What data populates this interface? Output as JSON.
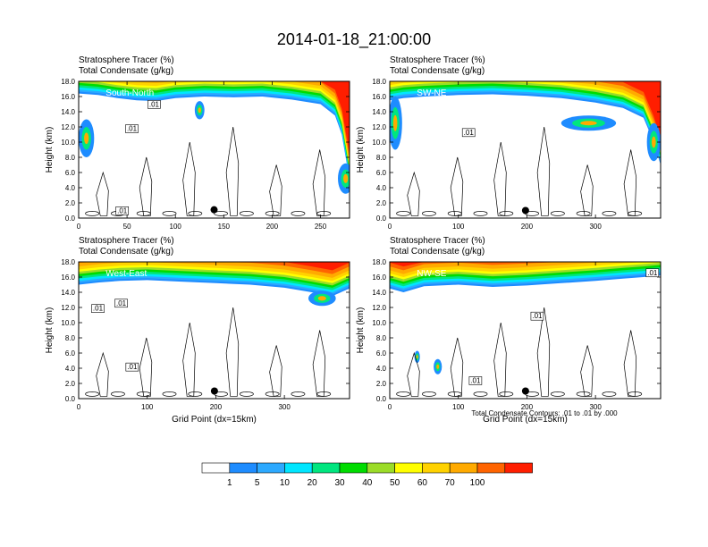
{
  "title": "2014-01-18_21:00:00",
  "colors": {
    "levels": [
      "#ffffff",
      "#1e8cff",
      "#2ca9ff",
      "#00e6ff",
      "#00e67f",
      "#00dc00",
      "#9bdc28",
      "#ffff00",
      "#ffd200",
      "#ffaa00",
      "#ff6400",
      "#ff1e00"
    ],
    "contour": "#000000",
    "marker": "#000000"
  },
  "legend": {
    "labels": [
      "1",
      "5",
      "10",
      "20",
      "30",
      "40",
      "50",
      "60",
      "70",
      "100"
    ]
  },
  "footnote": "Total Condensate Contours: .01 to .01 by .000",
  "chart_data": [
    {
      "type": "heatmap",
      "subtitle_1": "Stratosphere Tracer   (%)",
      "subtitle_2": "Total Condensate   (g/kg)",
      "panel_label": "South-North",
      "ylabel": "Height (km)",
      "xlabel": "",
      "xlim": [
        0,
        280
      ],
      "ylim": [
        0,
        18
      ],
      "x_ticks": [
        "0",
        "50",
        "100",
        "150",
        "200",
        "250"
      ],
      "x_tick_values": [
        0,
        50,
        100,
        150,
        200,
        250
      ],
      "y_ticks": [
        "0.0",
        "2.0",
        "4.0",
        "6.0",
        "8.0",
        "10.0",
        "12.0",
        "14.0",
        "16.0",
        "18.0"
      ],
      "contour_labels": [
        {
          "text": ".01",
          "x": 55,
          "y": 11.7
        },
        {
          "text": ".01",
          "x": 78,
          "y": 14.9
        },
        {
          "text": ".01",
          "x": 45,
          "y": 0.9
        }
      ],
      "marker": {
        "x": 140,
        "y": 1.1
      },
      "tropopause": [
        [
          0,
          16.4
        ],
        [
          20,
          16.2
        ],
        [
          40,
          15.8
        ],
        [
          60,
          15.5
        ],
        [
          80,
          15.4
        ],
        [
          100,
          15.8
        ],
        [
          130,
          16.0
        ],
        [
          160,
          15.9
        ],
        [
          190,
          16.0
        ],
        [
          220,
          15.6
        ],
        [
          250,
          15.0
        ],
        [
          265,
          13.5
        ],
        [
          272,
          11
        ],
        [
          276,
          8
        ],
        [
          280,
          5
        ]
      ],
      "low_blobs": [
        {
          "x": 8,
          "y": 10.5,
          "rx": 8,
          "ry": 2.5
        },
        {
          "x": 276,
          "y": 5.2,
          "rx": 8,
          "ry": 2
        },
        {
          "x": 125,
          "y": 14.2,
          "rx": 5,
          "ry": 1.2
        }
      ]
    },
    {
      "type": "heatmap",
      "subtitle_1": "Stratosphere Tracer   (%)",
      "subtitle_2": "Total Condensate   (g/kg)",
      "panel_label": "SW-NE",
      "ylabel": "Height (km)",
      "xlabel": "",
      "xlim": [
        0,
        395
      ],
      "ylim": [
        0,
        18
      ],
      "x_ticks": [
        "0",
        "100",
        "200",
        "300"
      ],
      "x_tick_values": [
        0,
        100,
        200,
        300
      ],
      "y_ticks": [
        "0.0",
        "2.0",
        "4.0",
        "6.0",
        "8.0",
        "10.0",
        "12.0",
        "14.0",
        "16.0",
        "18.0"
      ],
      "contour_labels": [
        {
          "text": ".01",
          "x": 115,
          "y": 11.2
        }
      ],
      "marker": {
        "x": 198,
        "y": 1.0
      },
      "tropopause": [
        [
          0,
          15.5
        ],
        [
          20,
          15.8
        ],
        [
          50,
          16.0
        ],
        [
          100,
          16.2
        ],
        [
          150,
          16.3
        ],
        [
          200,
          16.1
        ],
        [
          250,
          15.8
        ],
        [
          300,
          15.2
        ],
        [
          340,
          14.5
        ],
        [
          370,
          13.2
        ],
        [
          385,
          10
        ],
        [
          395,
          7
        ]
      ],
      "low_blobs": [
        {
          "x": 8,
          "y": 12.5,
          "rx": 10,
          "ry": 3.5
        },
        {
          "x": 290,
          "y": 12.5,
          "rx": 40,
          "ry": 1.0
        },
        {
          "x": 385,
          "y": 10,
          "rx": 10,
          "ry": 2.5
        }
      ]
    },
    {
      "type": "heatmap",
      "subtitle_1": "Stratosphere Tracer   (%)",
      "subtitle_2": "Total Condensate   (g/kg)",
      "panel_label": "West-East",
      "ylabel": "Height (km)",
      "xlabel": "Grid Point (dx=15km)",
      "xlim": [
        0,
        395
      ],
      "ylim": [
        0,
        18
      ],
      "x_ticks": [
        "0",
        "100",
        "200",
        "300"
      ],
      "x_tick_values": [
        0,
        100,
        200,
        300
      ],
      "y_ticks": [
        "0.0",
        "2.0",
        "4.0",
        "6.0",
        "8.0",
        "10.0",
        "12.0",
        "14.0",
        "16.0",
        "18.0"
      ],
      "contour_labels": [
        {
          "text": ".01",
          "x": 28,
          "y": 11.8
        },
        {
          "text": ".01",
          "x": 62,
          "y": 12.5
        },
        {
          "text": ".01",
          "x": 78,
          "y": 4.1
        }
      ],
      "marker": {
        "x": 198,
        "y": 1.0
      },
      "tropopause": [
        [
          0,
          15.0
        ],
        [
          30,
          15.3
        ],
        [
          60,
          15.5
        ],
        [
          100,
          15.6
        ],
        [
          150,
          15.4
        ],
        [
          200,
          15.2
        ],
        [
          250,
          15.0
        ],
        [
          300,
          14.6
        ],
        [
          340,
          14.0
        ],
        [
          370,
          13.5
        ],
        [
          395,
          14.5
        ]
      ],
      "low_blobs": [
        {
          "x": 355,
          "y": 13.2,
          "rx": 20,
          "ry": 1.0
        }
      ]
    },
    {
      "type": "heatmap",
      "subtitle_1": "Stratosphere Tracer   (%)",
      "subtitle_2": "Total Condensate   (g/kg)",
      "panel_label": "NW-SE",
      "ylabel": "Height (km)",
      "xlabel": "Grid Point (dx=15km)",
      "xlim": [
        0,
        395
      ],
      "ylim": [
        0,
        18
      ],
      "x_ticks": [
        "0",
        "100",
        "200",
        "300"
      ],
      "x_tick_values": [
        0,
        100,
        200,
        300
      ],
      "y_ticks": [
        "0.0",
        "2.0",
        "4.0",
        "6.0",
        "8.0",
        "10.0",
        "12.0",
        "14.0",
        "16.0",
        "18.0"
      ],
      "contour_labels": [
        {
          "text": ".01",
          "x": 215,
          "y": 10.8
        },
        {
          "text": ".01",
          "x": 125,
          "y": 2.3
        },
        {
          "text": ".01",
          "x": 383,
          "y": 16.5
        }
      ],
      "marker": {
        "x": 198,
        "y": 1.0
      },
      "tropopause": [
        [
          0,
          14.5
        ],
        [
          20,
          14.0
        ],
        [
          50,
          14.8
        ],
        [
          100,
          15.0
        ],
        [
          150,
          14.7
        ],
        [
          200,
          14.9
        ],
        [
          250,
          15.2
        ],
        [
          300,
          15.5
        ],
        [
          340,
          15.8
        ],
        [
          370,
          16.0
        ],
        [
          395,
          16.2
        ]
      ],
      "low_blobs": [
        {
          "x": 70,
          "y": 4.2,
          "rx": 6,
          "ry": 1.0
        },
        {
          "x": 40,
          "y": 5.5,
          "rx": 4,
          "ry": 0.8
        }
      ]
    }
  ]
}
